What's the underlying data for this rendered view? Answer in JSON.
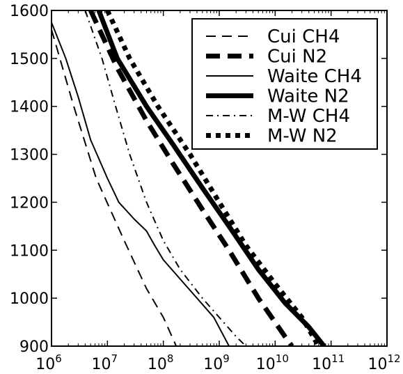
{
  "chart_data": {
    "type": "line",
    "title": "",
    "xlabel": "",
    "ylabel": "",
    "xscale": "log",
    "xlim": [
      1000000.0,
      1000000000000.0
    ],
    "ylim": [
      900,
      1600
    ],
    "x_ticks": [
      {
        "base": "10",
        "exp": "6"
      },
      {
        "base": "10",
        "exp": "7"
      },
      {
        "base": "10",
        "exp": "8"
      },
      {
        "base": "10",
        "exp": "9"
      },
      {
        "base": "10",
        "exp": "10"
      },
      {
        "base": "10",
        "exp": "11"
      },
      {
        "base": "10",
        "exp": "12"
      }
    ],
    "y_ticks": [
      "900",
      "1000",
      "1100",
      "1200",
      "1300",
      "1400",
      "1500",
      "1600"
    ],
    "grid": false,
    "legend_position": "top-right",
    "series": [
      {
        "name": "Cui CH4",
        "style": "dash-thin",
        "color": "#000000",
        "points": [
          [
            1000000.0,
            1560
          ],
          [
            2500000.0,
            1400
          ],
          [
            6300000.0,
            1250
          ],
          [
            20000000.0,
            1120
          ],
          [
            50000000.0,
            1020
          ],
          [
            100000000.0,
            960
          ],
          [
            170000000.0,
            900
          ]
        ]
      },
      {
        "name": "Cui N2",
        "style": "dash-thick",
        "color": "#000000",
        "points": [
          [
            5000000.0,
            1600
          ],
          [
            15000000.0,
            1480
          ],
          [
            50000000.0,
            1370
          ],
          [
            150000000.0,
            1280
          ],
          [
            500000000.0,
            1185
          ],
          [
            1500000000.0,
            1100
          ],
          [
            5000000000.0,
            1000
          ],
          [
            15000000000.0,
            920
          ],
          [
            20000000000.0,
            900
          ]
        ]
      },
      {
        "name": "Waite CH4",
        "style": "solid-thin",
        "color": "#000000",
        "points": [
          [
            1000000.0,
            1575
          ],
          [
            1800000.0,
            1500
          ],
          [
            3000000.0,
            1420
          ],
          [
            5000000.0,
            1330
          ],
          [
            10000000.0,
            1250
          ],
          [
            16000000.0,
            1200
          ],
          [
            30000000.0,
            1165
          ],
          [
            50000000.0,
            1140
          ],
          [
            70000000.0,
            1110
          ],
          [
            100000000.0,
            1080
          ],
          [
            200000000.0,
            1040
          ],
          [
            400000000.0,
            1000
          ],
          [
            800000000.0,
            960
          ],
          [
            1500000000.0,
            900
          ]
        ]
      },
      {
        "name": "Waite N2",
        "style": "solid-thick",
        "color": "#000000",
        "points": [
          [
            7000000.0,
            1600
          ],
          [
            15000000.0,
            1500
          ],
          [
            50000000.0,
            1400
          ],
          [
            150000000.0,
            1320
          ],
          [
            500000000.0,
            1230
          ],
          [
            1500000000.0,
            1150
          ],
          [
            5000000000.0,
            1060
          ],
          [
            15000000000.0,
            990
          ],
          [
            40000000000.0,
            940
          ],
          [
            75000000000.0,
            900
          ]
        ]
      },
      {
        "name": "M-W CH4",
        "style": "dashdot-thin",
        "color": "#000000",
        "points": [
          [
            4000000.0,
            1600
          ],
          [
            8000000.0,
            1500
          ],
          [
            14000000.0,
            1400
          ],
          [
            25000000.0,
            1300
          ],
          [
            50000000.0,
            1200
          ],
          [
            100000000.0,
            1120
          ],
          [
            200000000.0,
            1060
          ],
          [
            500000000.0,
            1000
          ],
          [
            1000000000.0,
            960
          ],
          [
            2000000000.0,
            920
          ],
          [
            3000000000.0,
            900
          ]
        ]
      },
      {
        "name": "M-W N2",
        "style": "dotted-thick",
        "color": "#000000",
        "points": [
          [
            10000000.0,
            1600
          ],
          [
            25000000.0,
            1500
          ],
          [
            80000000.0,
            1400
          ],
          [
            300000000.0,
            1300
          ],
          [
            1000000000.0,
            1200
          ],
          [
            3000000000.0,
            1110
          ],
          [
            10000000000.0,
            1030
          ],
          [
            30000000000.0,
            960
          ],
          [
            60000000000.0,
            900
          ]
        ]
      }
    ]
  }
}
